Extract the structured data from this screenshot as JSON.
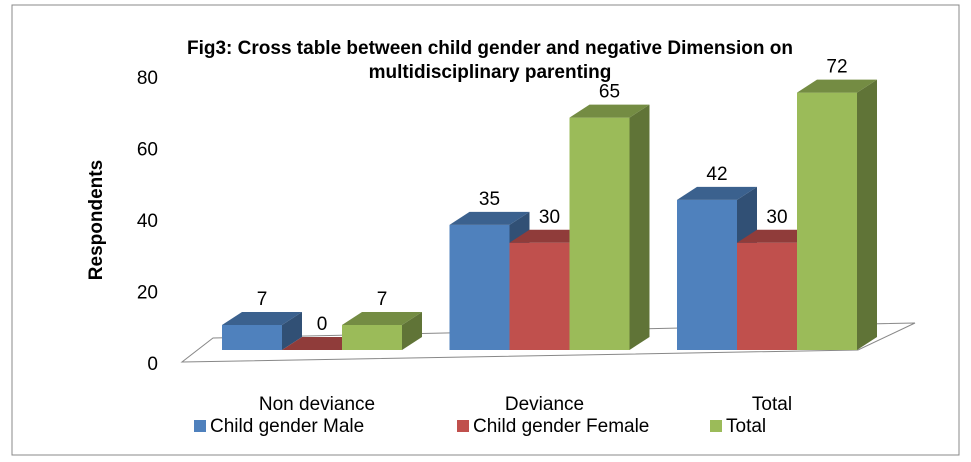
{
  "chart_data": {
    "type": "bar3d",
    "title": "Fig3: Cross table between child gender and negative Dimension on multidisciplinary parenting",
    "y_label": "Respondents",
    "categories": [
      "Non deviance",
      "Deviance",
      "Total"
    ],
    "series": [
      {
        "name": "Child gender Male",
        "color": "#4f81bd",
        "values": [
          7,
          35,
          42
        ]
      },
      {
        "name": "Child gender Female",
        "color": "#c0504d",
        "values": [
          0,
          30,
          30
        ]
      },
      {
        "name": "Total",
        "color": "#9bbb59",
        "values": [
          7,
          65,
          72
        ]
      }
    ],
    "ylim": [
      0,
      80
    ],
    "yticks": [
      0,
      20,
      40,
      60,
      80
    ],
    "legend": "bottom"
  }
}
